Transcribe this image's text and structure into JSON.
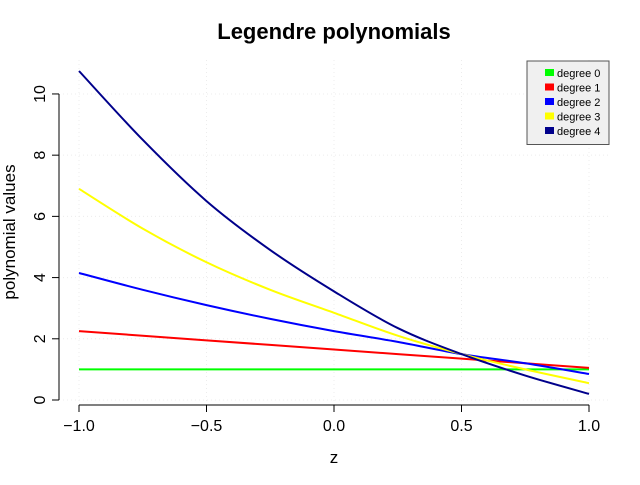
{
  "chart_data": {
    "type": "line",
    "title": "Legendre polynomials",
    "xlabel": "z",
    "ylabel": "polynomial values",
    "xlim": [
      -1.0,
      1.0
    ],
    "ylim": [
      0,
      10.75
    ],
    "xticks": [
      -1.0,
      -0.5,
      0.0,
      0.5,
      1.0
    ],
    "xtick_labels": [
      "−1.0",
      "−0.5",
      "0.0",
      "0.5",
      "1.0"
    ],
    "yticks": [
      0,
      2,
      4,
      6,
      8,
      10
    ],
    "ytick_labels": [
      "0",
      "2",
      "4",
      "6",
      "8",
      "10"
    ],
    "grid": true,
    "legend_position": "top-right",
    "x": [
      -1.0,
      -0.75,
      -0.5,
      -0.25,
      0.0,
      0.25,
      0.5,
      0.75,
      1.0
    ],
    "series": [
      {
        "name": "degree 0",
        "color": "#00ff00",
        "values": [
          1.0,
          1.0,
          1.0,
          1.0,
          1.0,
          1.0,
          1.0,
          1.0,
          1.0
        ]
      },
      {
        "name": "degree 1",
        "color": "#ff0000",
        "values": [
          2.25,
          2.1,
          1.95,
          1.8,
          1.65,
          1.5,
          1.35,
          1.2,
          1.05
        ]
      },
      {
        "name": "degree 2",
        "color": "#0000ff",
        "values": [
          4.15,
          3.6,
          3.1,
          2.65,
          2.25,
          1.9,
          1.5,
          1.2,
          0.85
        ]
      },
      {
        "name": "degree 3",
        "color": "#ffff00",
        "values": [
          6.9,
          5.6,
          4.5,
          3.6,
          2.85,
          2.1,
          1.5,
          1.0,
          0.55
        ]
      },
      {
        "name": "degree 4",
        "color": "#00008b",
        "values": [
          10.75,
          8.5,
          6.5,
          4.9,
          3.55,
          2.35,
          1.5,
          0.8,
          0.2
        ]
      }
    ]
  }
}
